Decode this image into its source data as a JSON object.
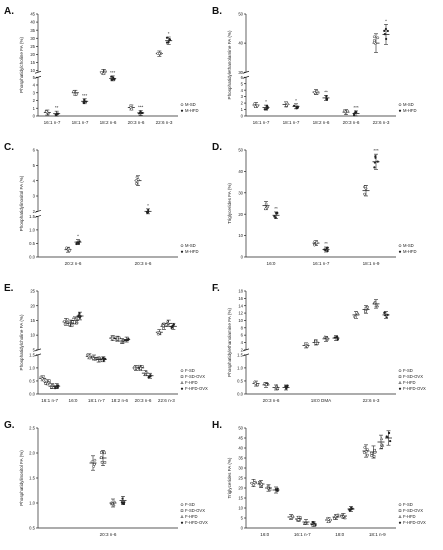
{
  "figure": {
    "panels_order": [
      "A.",
      "B.",
      "C.",
      "D.",
      "E.",
      "F.",
      "G.",
      "H."
    ]
  },
  "chart_data": [
    {
      "panel": "A.",
      "type": "scatter",
      "ylabel": "Phosphatidylcholine FA (%)",
      "categories": [
        "16:1 n-7",
        "18:1 n-7",
        "18:2 n-6",
        "20:3 n-6",
        "22:6 n-3"
      ],
      "yticks": [
        "0",
        "1",
        "2",
        "3",
        "4",
        "5",
        "10",
        "15",
        "20",
        "25",
        "30",
        "35",
        "40",
        "45"
      ],
      "series": [
        {
          "name": "M-SD",
          "marker": "circle",
          "values": [
            0.45,
            3.0,
            9.2,
            1.1,
            20.5
          ]
        },
        {
          "name": "M-HFD",
          "marker": "filled",
          "values": [
            0.3,
            1.9,
            5.2,
            0.4,
            28.5
          ]
        }
      ],
      "sig": [
        "**",
        "***",
        "***",
        "***",
        "*"
      ]
    },
    {
      "panel": "B.",
      "type": "scatter",
      "ylabel": "Phosphatidylethanolamine FA (%)",
      "categories": [
        "16:1 n-7",
        "18:1 n-7",
        "18:2 n-6",
        "20:3 n-6",
        "22:6 n-3"
      ],
      "yticks": [
        "0",
        "1",
        "2",
        "3",
        "4",
        "5",
        "6",
        "30",
        "40",
        "50"
      ],
      "series": [
        {
          "name": "M-SD",
          "marker": "circle",
          "values": [
            1.7,
            1.8,
            3.7,
            0.6,
            40.0
          ]
        },
        {
          "name": "M-HFD",
          "marker": "filled",
          "values": [
            1.3,
            1.5,
            2.8,
            0.4,
            43.0
          ]
        }
      ],
      "sig": [
        "*",
        "*",
        "**",
        "***",
        "*"
      ]
    },
    {
      "panel": "C.",
      "type": "scatter",
      "ylabel": "Phosphatidylinositol FA (%)",
      "categories": [
        "20:2 n-6",
        "20:3 n-6"
      ],
      "yticks": [
        "0.0",
        "0.5",
        "1.0",
        "1.5",
        "2",
        "3",
        "4",
        "5",
        "6"
      ],
      "series": [
        {
          "name": "M-SD",
          "marker": "circle",
          "values": [
            0.27,
            4.0
          ]
        },
        {
          "name": "M-HFD",
          "marker": "filled",
          "values": [
            0.55,
            2.0
          ]
        }
      ],
      "sig": [
        "*",
        "*"
      ]
    },
    {
      "panel": "D.",
      "type": "scatter",
      "ylabel": "Triglycerides FA (%)",
      "categories": [
        "16:0",
        "16:1 n-7",
        "18:1 n-9"
      ],
      "yticks": [
        "0",
        "10",
        "20",
        "30",
        "40",
        "50"
      ],
      "series": [
        {
          "name": "M-SD",
          "marker": "circle",
          "values": [
            24.0,
            6.5,
            31.0
          ]
        },
        {
          "name": "M-HFD",
          "marker": "filled",
          "values": [
            19.5,
            3.5,
            44.5
          ]
        }
      ],
      "sig": [
        "**",
        "**",
        "***"
      ]
    },
    {
      "panel": "E.",
      "type": "scatter",
      "ylabel": "Phosphatidylcholine FA (%)",
      "categories": [
        "16:1 n-7",
        "16:0",
        "18:1 n-7",
        "18:2 n-6",
        "20:3 n-6",
        "22:6 n-3"
      ],
      "yticks": [
        "0.0",
        "0.5",
        "1.0",
        "1.5",
        "5",
        "10",
        "15",
        "20",
        "25"
      ],
      "series": [
        {
          "name": "F-SD",
          "marker": "circle",
          "values": [
            0.6,
            14.5,
            2.8,
            9.0,
            1.0,
            11.0
          ]
        },
        {
          "name": "F-SD-OVX",
          "marker": "square",
          "values": [
            0.45,
            14.0,
            2.4,
            8.8,
            1.0,
            13.0
          ]
        },
        {
          "name": "F-HFD",
          "marker": "triangle",
          "values": [
            0.3,
            15.0,
            1.7,
            8.0,
            0.8,
            14.0
          ]
        },
        {
          "name": "F-HFD-OVX",
          "marker": "filled",
          "values": [
            0.3,
            16.5,
            1.8,
            8.5,
            0.7,
            13.0
          ]
        }
      ]
    },
    {
      "panel": "F.",
      "type": "scatter",
      "ylabel": "Phosphatidylethanolamine FA (%)",
      "categories": [
        "20:3 n-6",
        "18:0 DMA",
        "22:6 n-3"
      ],
      "yticks": [
        "0.0",
        "0.5",
        "1.0",
        "1.5",
        "2",
        "4",
        "6",
        "8",
        "10",
        "12",
        "14",
        "16",
        "18"
      ],
      "series": [
        {
          "name": "F-SD",
          "marker": "circle",
          "values": [
            0.4,
            3.2,
            11.5
          ]
        },
        {
          "name": "F-SD-OVX",
          "marker": "square",
          "values": [
            0.35,
            4.0,
            13.0
          ]
        },
        {
          "name": "F-HFD",
          "marker": "triangle",
          "values": [
            0.25,
            5.0,
            14.5
          ]
        },
        {
          "name": "F-HFD-OVX",
          "marker": "filled",
          "values": [
            0.25,
            5.2,
            11.5
          ]
        }
      ]
    },
    {
      "panel": "G.",
      "type": "scatter",
      "ylabel": "Phosphatidylinositol FA (%)",
      "categories": [
        "20:3 n-6"
      ],
      "yticks": [
        "0.5",
        "1.0",
        "1.5",
        "2.0",
        "2.5"
      ],
      "series": [
        {
          "name": "F-SD",
          "marker": "circle",
          "values": [
            1.8
          ]
        },
        {
          "name": "F-SD-OVX",
          "marker": "square",
          "values": [
            1.9
          ]
        },
        {
          "name": "F-HFD",
          "marker": "triangle",
          "values": [
            1.0
          ]
        },
        {
          "name": "F-HFD-OVX",
          "marker": "filled",
          "values": [
            1.05
          ]
        }
      ]
    },
    {
      "panel": "H.",
      "type": "scatter",
      "ylabel": "Triglycerides FA (%)",
      "categories": [
        "16:0",
        "16:1 n-7",
        "18:0",
        "18:1 n-9"
      ],
      "yticks": [
        "0",
        "5",
        "10",
        "15",
        "20",
        "25",
        "30",
        "35",
        "40",
        "45",
        "50"
      ],
      "series": [
        {
          "name": "F-SD",
          "marker": "circle",
          "values": [
            22.5,
            5.5,
            4.0,
            38.5
          ]
        },
        {
          "name": "F-SD-OVX",
          "marker": "square",
          "values": [
            22.0,
            4.5,
            5.5,
            38.0
          ]
        },
        {
          "name": "F-HFD",
          "marker": "triangle",
          "values": [
            20.0,
            3.0,
            6.0,
            43.0
          ]
        },
        {
          "name": "F-HFD-OVX",
          "marker": "filled",
          "values": [
            19.0,
            2.0,
            9.5,
            45.0
          ]
        }
      ]
    }
  ]
}
